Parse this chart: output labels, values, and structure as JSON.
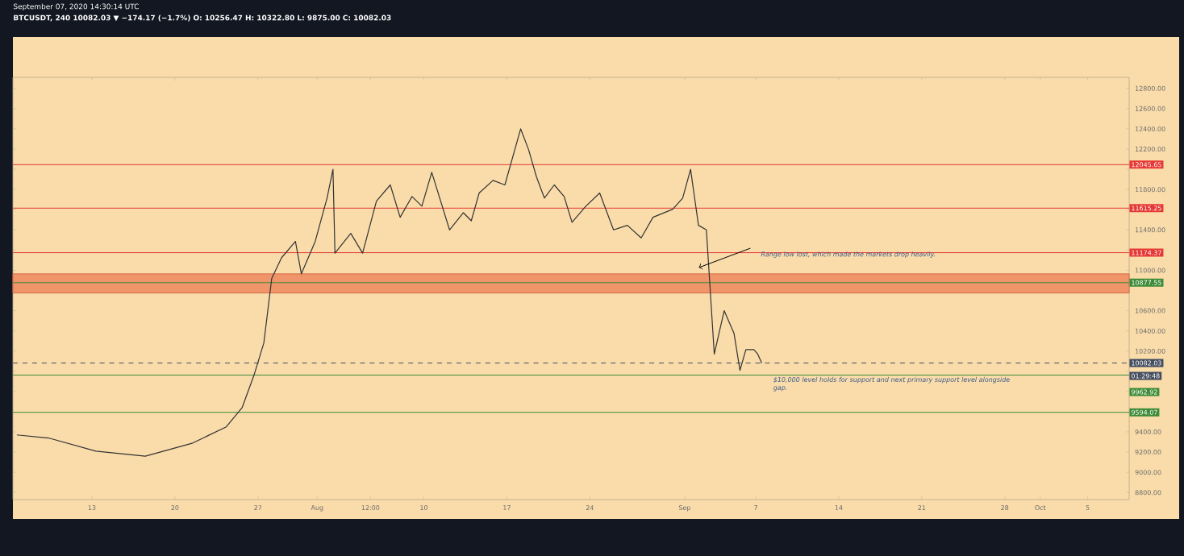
{
  "chart_data": {
    "type": "line",
    "title": "September 07, 2020 14:30:14 UTC",
    "subtitle": "BTCUSDT, 240  10082.03 ▼ −174.17 (−1.7%) O: 10256.47 H: 10322.80 L: 9875.00 C: 10082.03",
    "x": [
      "2020-07-06T16:00",
      "2020-07-09T08:00",
      "2020-07-13T08:00",
      "2020-07-17T12:00",
      "2020-07-21T12:00",
      "2020-07-24T08:00",
      "2020-07-25T16:00",
      "2020-07-26T16:00",
      "2020-07-27T12:00",
      "2020-07-28T04:00",
      "2020-07-29T00:00",
      "2020-07-30T04:00",
      "2020-07-30T16:00",
      "2020-07-31T20:00",
      "2020-08-01T20:00",
      "2020-08-02T08:00",
      "2020-08-02T12:00",
      "2020-08-03T20:00",
      "2020-08-04T20:00",
      "2020-08-06T00:00",
      "2020-08-07T04:00",
      "2020-08-08T00:00",
      "2020-08-09T00:00",
      "2020-08-09T20:00",
      "2020-08-10T16:00",
      "2020-08-12T04:00",
      "2020-08-13T08:00",
      "2020-08-14T00:00",
      "2020-08-14T16:00",
      "2020-08-15T20:00",
      "2020-08-16T20:00",
      "2020-08-18T04:00",
      "2020-08-18T20:00",
      "2020-08-19T12:00",
      "2020-08-20T04:00",
      "2020-08-21T00:00",
      "2020-08-21T20:00",
      "2020-08-22T12:00",
      "2020-08-23T16:00",
      "2020-08-24T20:00",
      "2020-08-26T00:00",
      "2020-08-27T04:00",
      "2020-08-28T08:00",
      "2020-08-29T08:00",
      "2020-08-31T00:00",
      "2020-08-31T20:00",
      "2020-09-01T12:00",
      "2020-09-02T04:00",
      "2020-09-02T20:00",
      "2020-09-03T12:00",
      "2020-09-04T08:00",
      "2020-09-05T04:00",
      "2020-09-05T16:00",
      "2020-09-06T04:00",
      "2020-09-06T08:00",
      "2020-09-06T20:00",
      "2020-09-07T04:00",
      "2020-09-07T12:00"
    ],
    "series": [
      {
        "color": "#333333",
        "values": [
          9370,
          9340,
          9210,
          9160,
          9290,
          9450,
          9640,
          9960,
          10280,
          10920,
          11125,
          11285,
          10965,
          11285,
          11715,
          12000,
          11170,
          11365,
          11170,
          11685,
          11845,
          11525,
          11730,
          11635,
          11970,
          11400,
          11570,
          11490,
          11765,
          11890,
          11845,
          12400,
          12195,
          11925,
          11715,
          11845,
          11730,
          11475,
          11635,
          11765,
          11400,
          11445,
          11320,
          11525,
          11605,
          11715,
          12000,
          11445,
          11400,
          10170,
          10600,
          10375,
          10010,
          10215,
          10215,
          10215,
          10170,
          10082
        ]
      }
    ],
    "xlim": [
      "2020-07-06T08:00",
      "2020-10-08T12:00"
    ],
    "xticks": [
      {
        "value": "2020-07-13",
        "label": "13"
      },
      {
        "value": "2020-07-20",
        "label": "20"
      },
      {
        "value": "2020-07-27",
        "label": "27"
      },
      {
        "value": "2020-08-01",
        "label": "Aug"
      },
      {
        "value": "2020-08-05T12:00",
        "label": "12:00"
      },
      {
        "value": "2020-08-10",
        "label": "10"
      },
      {
        "value": "2020-08-17",
        "label": "17"
      },
      {
        "value": "2020-08-24",
        "label": "24"
      },
      {
        "value": "2020-09-01",
        "label": "Sep"
      },
      {
        "value": "2020-09-07",
        "label": "7"
      },
      {
        "value": "2020-09-14",
        "label": "14"
      },
      {
        "value": "2020-09-21",
        "label": "21"
      },
      {
        "value": "2020-09-28",
        "label": "28"
      },
      {
        "value": "2020-10-01",
        "label": "Oct"
      },
      {
        "value": "2020-10-05",
        "label": "5"
      }
    ],
    "ylim": [
      8730,
      12910
    ],
    "yticks": [
      {
        "value": 8800,
        "label": "8800.00"
      },
      {
        "value": 9000,
        "label": "9000.00"
      },
      {
        "value": 9200,
        "label": "9200.00"
      },
      {
        "value": 9400,
        "label": "9400.00"
      },
      {
        "value": 9800,
        "label": null
      },
      {
        "value": 10000,
        "label": null
      },
      {
        "value": 10200,
        "label": "10200.00"
      },
      {
        "value": 10400,
        "label": "10400.00"
      },
      {
        "value": 10600,
        "label": "10600.00"
      },
      {
        "value": 10800,
        "label": null
      },
      {
        "value": 11000,
        "label": "11000.00"
      },
      {
        "value": 11200,
        "label": null
      },
      {
        "value": 11400,
        "label": "11400.00"
      },
      {
        "value": 11600,
        "label": null
      },
      {
        "value": 11800,
        "label": "11800.00"
      },
      {
        "value": 12000,
        "label": null
      },
      {
        "value": 12200,
        "label": "12200.00"
      },
      {
        "value": 12400,
        "label": "12400.00"
      },
      {
        "value": 12600,
        "label": "12600.00"
      },
      {
        "value": 12800,
        "label": "12800.00"
      }
    ],
    "ref_lines": [
      {
        "axis": "y",
        "value": 12045.65,
        "label": "12045.65",
        "color": "#e53935"
      },
      {
        "axis": "y",
        "value": 11615.25,
        "label": "11615.25",
        "color": "#e53935"
      },
      {
        "axis": "y",
        "value": 11174.37,
        "label": "11174.37",
        "color": "#e53935"
      },
      {
        "axis": "y",
        "value": 10877.55,
        "label": "10877.55",
        "color": "#3d8b37"
      },
      {
        "axis": "y",
        "value": 10082.03,
        "label": "10082.03",
        "color": "#434c5e",
        "line_style": "dashed"
      },
      {
        "axis": "y",
        "value": 9962.92,
        "label": "9962.92",
        "color": "#3d8b37"
      },
      {
        "axis": "y",
        "value": 9594.07,
        "label": "9594.07",
        "color": "#3d8b37"
      }
    ],
    "bands": [
      {
        "axis": "y",
        "from": 10775,
        "to": 10965,
        "color": "#f0956a"
      }
    ],
    "annotations": [
      "Range low lost, which made the markets drop heavily.",
      {
        "text": "$10,000 level holds for support and next primary support level alongside gap.",
        "x": "2020-09-08T00:00",
        "y": 10000
      },
      "01:29:48"
    ]
  }
}
